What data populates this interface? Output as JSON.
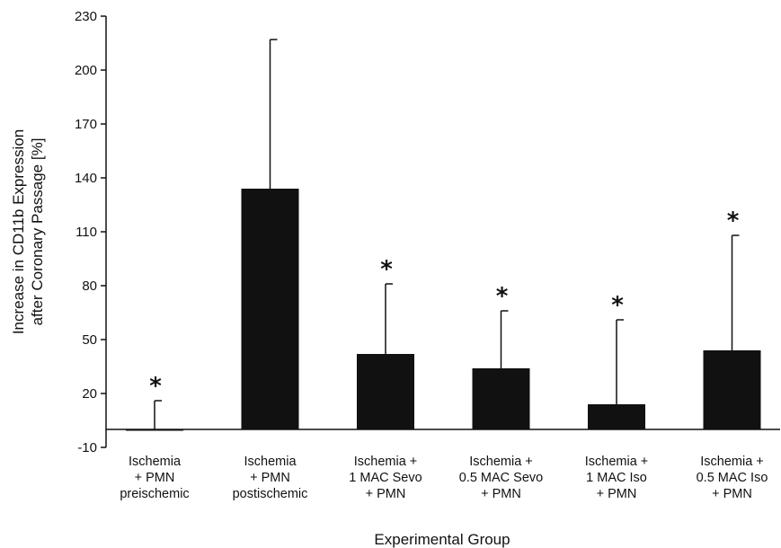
{
  "chart_data": {
    "type": "bar",
    "title": "",
    "xlabel": "Experimental Group",
    "ylabel": [
      "Increase in CD11b Expression",
      "after Coronary Passage [%]"
    ],
    "ylim": [
      -10,
      230
    ],
    "yticks": [
      230,
      200,
      170,
      140,
      110,
      80,
      50,
      20,
      -10
    ],
    "categories": [
      [
        "Ischemia",
        "+ PMN",
        "preischemic"
      ],
      [
        "Ischemia",
        "+ PMN",
        "postischemic"
      ],
      [
        "Ischemia +",
        "1 MAC Sevo",
        "+ PMN"
      ],
      [
        "Ischemia +",
        "0.5 MAC Sevo",
        "+ PMN"
      ],
      [
        "Ischemia +",
        "1 MAC Iso",
        "+ PMN"
      ],
      [
        "Ischemia +",
        "0.5 MAC Iso",
        "+ PMN"
      ]
    ],
    "values": [
      0,
      134,
      42,
      34,
      14,
      44
    ],
    "error_upper": [
      16,
      217,
      81,
      66,
      61,
      108
    ],
    "significance": [
      "*",
      "",
      "*",
      "*",
      "*",
      "*"
    ],
    "grid": false,
    "colors": {
      "bar": "#111111",
      "axis": "#111111"
    }
  }
}
